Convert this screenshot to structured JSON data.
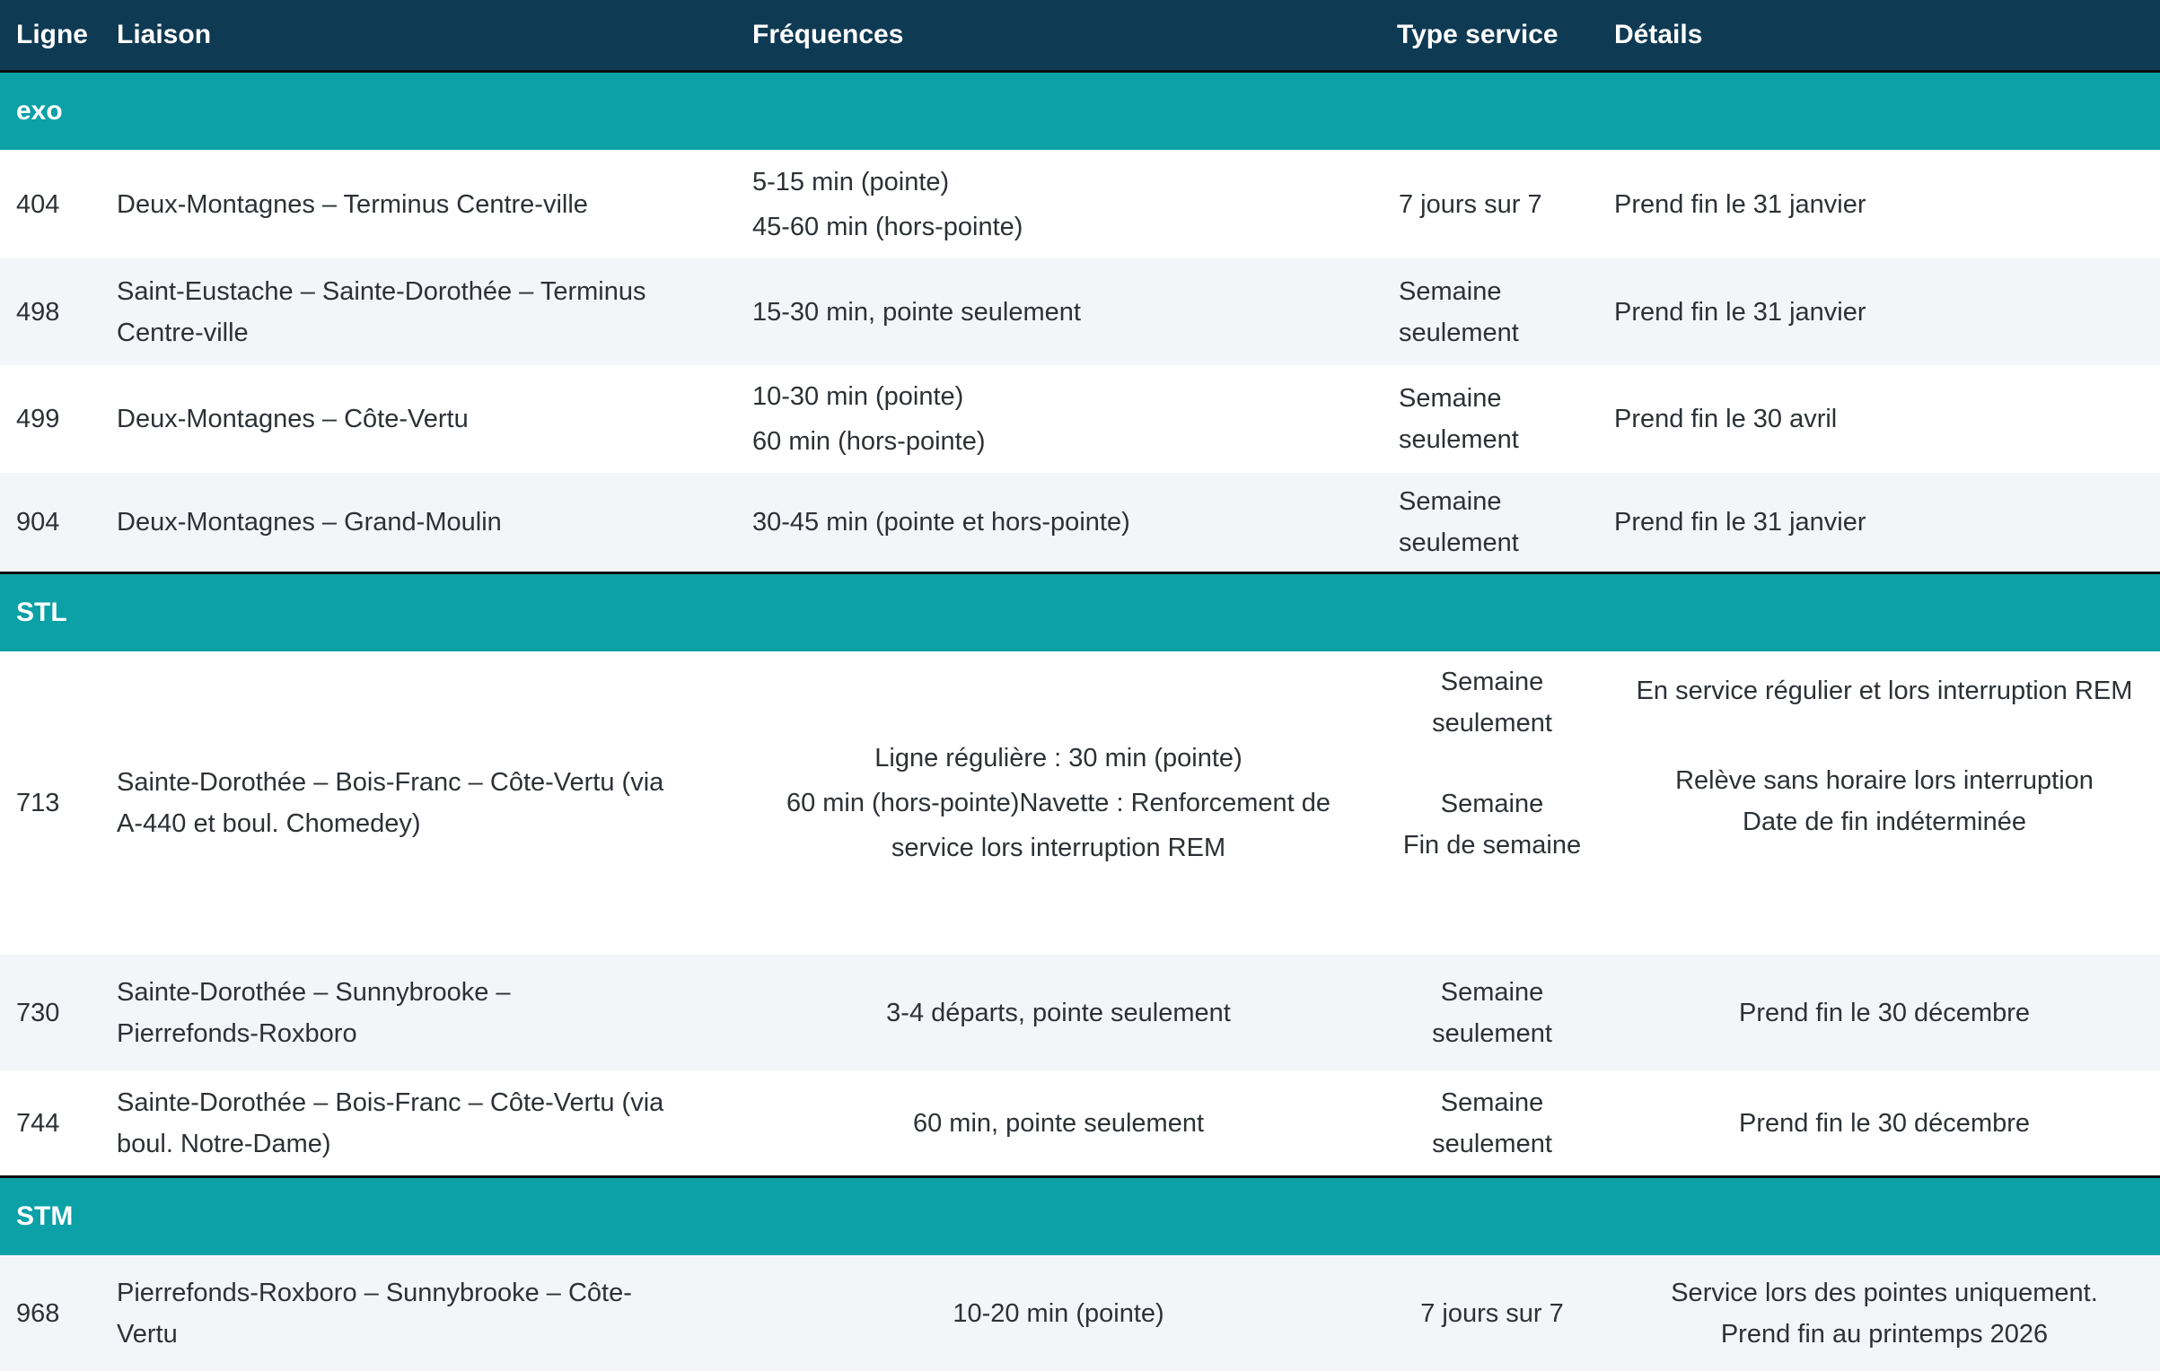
{
  "colors": {
    "header_navy": "#0f3a53",
    "section_teal": "#0ba1a6",
    "row_stripe": "#f4f5f8",
    "separator_black": "#0b0e11",
    "body_text": "#2d3136"
  },
  "table": {
    "columns": {
      "ligne": "Ligne",
      "liaison": "Liaison",
      "frequences": "Fréquences",
      "type_service": "Type service",
      "details": "Détails"
    },
    "sections": [
      {
        "label": "exo",
        "rows": [
          {
            "ligne": "404",
            "liaison": [
              "Deux-Montagnes – Terminus Centre-ville"
            ],
            "freq": [
              "5-15 min (pointe)",
              "45-60 min (hors-pointe)"
            ],
            "type_service": "7 jours sur 7",
            "details": [
              "Prend fin le 31 janvier"
            ]
          },
          {
            "ligne": "498",
            "liaison": [
              "Saint-Eustache – Sainte-Dorothée – Terminus",
              "Centre-ville"
            ],
            "freq": [
              "15-30 min, pointe seulement"
            ],
            "type_service": "Semaine seulement",
            "details": [
              "Prend fin le 31 janvier"
            ]
          },
          {
            "ligne": "499",
            "liaison": [
              "Deux-Montagnes – Côte-Vertu"
            ],
            "freq": [
              "10-30 min (pointe)",
              "60 min (hors-pointe)"
            ],
            "type_service": "Semaine seulement",
            "details": [
              "Prend fin le 30 avril"
            ]
          },
          {
            "ligne": "904",
            "liaison": [
              "Deux-Montagnes – Grand-Moulin"
            ],
            "freq": [
              "30-45 min (pointe et hors-pointe)"
            ],
            "type_service": "Semaine seulement",
            "details": [
              "Prend fin le 31 janvier"
            ]
          }
        ]
      },
      {
        "label": "STL",
        "rows": [
          {
            "ligne": "713",
            "liaison": [
              "Sainte-Dorothée – Bois-Franc – Côte-Vertu (via",
              "A-440 et boul. Chomedey)"
            ],
            "freq": [
              "Ligne régulière : 30 min (pointe)",
              "60 min (hors-pointe)Navette : Renforcement de",
              "service lors interruption REM"
            ],
            "type_blocks": [
              [
                "Semaine seulement"
              ],
              [
                "Semaine",
                "Fin de semaine"
              ]
            ],
            "details_blocks": [
              [
                "En service régulier et lors interruption REM"
              ],
              [
                "Relève sans horaire lors interruption",
                "Date de fin indéterminée"
              ]
            ]
          },
          {
            "ligne": "730",
            "liaison": [
              "Sainte-Dorothée – Sunnybrooke –",
              "Pierrefonds-Roxboro"
            ],
            "freq": [
              "3-4 départs, pointe seulement"
            ],
            "type_service": "Semaine seulement",
            "details": [
              "Prend fin le 30 décembre"
            ]
          },
          {
            "ligne": "744",
            "liaison": [
              "Sainte-Dorothée – Bois-Franc – Côte-Vertu (via",
              "boul. Notre-Dame)"
            ],
            "freq": [
              "60 min, pointe seulement"
            ],
            "type_service": "Semaine seulement",
            "details": [
              "Prend fin le 30 décembre"
            ]
          }
        ]
      },
      {
        "label": "STM",
        "rows": [
          {
            "ligne": "968",
            "liaison": [
              "Pierrefonds-Roxboro – Sunnybrooke – Côte-",
              "Vertu"
            ],
            "freq": [
              "10-20 min (pointe)"
            ],
            "type_service": "7 jours sur 7",
            "details": [
              "Service lors des pointes uniquement.",
              "Prend fin au printemps 2026"
            ]
          }
        ]
      }
    ]
  }
}
